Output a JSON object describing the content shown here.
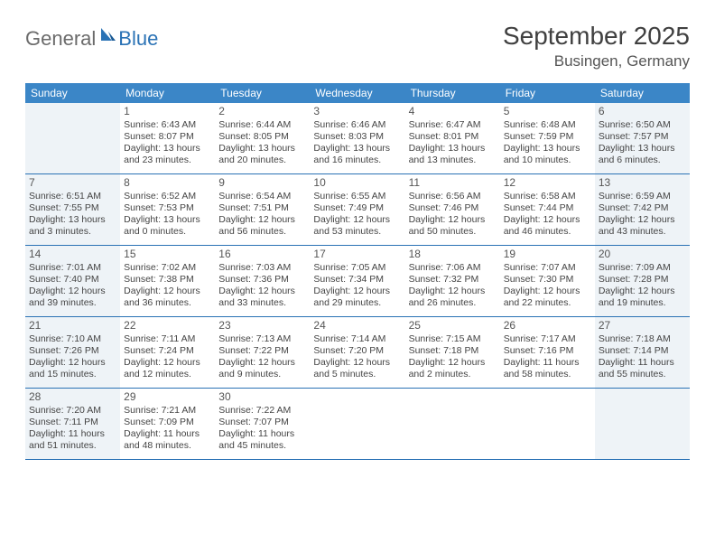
{
  "logo": {
    "general": "General",
    "blue": "Blue"
  },
  "title": "September 2025",
  "location": "Busingen, Germany",
  "colors": {
    "header_bg": "#3b86c7",
    "header_text": "#ffffff",
    "divider": "#2a72b5",
    "shaded_bg": "#eef3f7",
    "text": "#444444",
    "logo_gray": "#6b6b6b",
    "logo_blue": "#2a72b5"
  },
  "day_names": [
    "Sunday",
    "Monday",
    "Tuesday",
    "Wednesday",
    "Thursday",
    "Friday",
    "Saturday"
  ],
  "weeks": [
    [
      {
        "num": "",
        "sunrise": "",
        "sunset": "",
        "daylight": "",
        "shaded": true
      },
      {
        "num": "1",
        "sunrise": "Sunrise: 6:43 AM",
        "sunset": "Sunset: 8:07 PM",
        "daylight": "Daylight: 13 hours and 23 minutes."
      },
      {
        "num": "2",
        "sunrise": "Sunrise: 6:44 AM",
        "sunset": "Sunset: 8:05 PM",
        "daylight": "Daylight: 13 hours and 20 minutes."
      },
      {
        "num": "3",
        "sunrise": "Sunrise: 6:46 AM",
        "sunset": "Sunset: 8:03 PM",
        "daylight": "Daylight: 13 hours and 16 minutes."
      },
      {
        "num": "4",
        "sunrise": "Sunrise: 6:47 AM",
        "sunset": "Sunset: 8:01 PM",
        "daylight": "Daylight: 13 hours and 13 minutes."
      },
      {
        "num": "5",
        "sunrise": "Sunrise: 6:48 AM",
        "sunset": "Sunset: 7:59 PM",
        "daylight": "Daylight: 13 hours and 10 minutes."
      },
      {
        "num": "6",
        "sunrise": "Sunrise: 6:50 AM",
        "sunset": "Sunset: 7:57 PM",
        "daylight": "Daylight: 13 hours and 6 minutes.",
        "shaded": true
      }
    ],
    [
      {
        "num": "7",
        "sunrise": "Sunrise: 6:51 AM",
        "sunset": "Sunset: 7:55 PM",
        "daylight": "Daylight: 13 hours and 3 minutes.",
        "shaded": true
      },
      {
        "num": "8",
        "sunrise": "Sunrise: 6:52 AM",
        "sunset": "Sunset: 7:53 PM",
        "daylight": "Daylight: 13 hours and 0 minutes."
      },
      {
        "num": "9",
        "sunrise": "Sunrise: 6:54 AM",
        "sunset": "Sunset: 7:51 PM",
        "daylight": "Daylight: 12 hours and 56 minutes."
      },
      {
        "num": "10",
        "sunrise": "Sunrise: 6:55 AM",
        "sunset": "Sunset: 7:49 PM",
        "daylight": "Daylight: 12 hours and 53 minutes."
      },
      {
        "num": "11",
        "sunrise": "Sunrise: 6:56 AM",
        "sunset": "Sunset: 7:46 PM",
        "daylight": "Daylight: 12 hours and 50 minutes."
      },
      {
        "num": "12",
        "sunrise": "Sunrise: 6:58 AM",
        "sunset": "Sunset: 7:44 PM",
        "daylight": "Daylight: 12 hours and 46 minutes."
      },
      {
        "num": "13",
        "sunrise": "Sunrise: 6:59 AM",
        "sunset": "Sunset: 7:42 PM",
        "daylight": "Daylight: 12 hours and 43 minutes.",
        "shaded": true
      }
    ],
    [
      {
        "num": "14",
        "sunrise": "Sunrise: 7:01 AM",
        "sunset": "Sunset: 7:40 PM",
        "daylight": "Daylight: 12 hours and 39 minutes.",
        "shaded": true
      },
      {
        "num": "15",
        "sunrise": "Sunrise: 7:02 AM",
        "sunset": "Sunset: 7:38 PM",
        "daylight": "Daylight: 12 hours and 36 minutes."
      },
      {
        "num": "16",
        "sunrise": "Sunrise: 7:03 AM",
        "sunset": "Sunset: 7:36 PM",
        "daylight": "Daylight: 12 hours and 33 minutes."
      },
      {
        "num": "17",
        "sunrise": "Sunrise: 7:05 AM",
        "sunset": "Sunset: 7:34 PM",
        "daylight": "Daylight: 12 hours and 29 minutes."
      },
      {
        "num": "18",
        "sunrise": "Sunrise: 7:06 AM",
        "sunset": "Sunset: 7:32 PM",
        "daylight": "Daylight: 12 hours and 26 minutes."
      },
      {
        "num": "19",
        "sunrise": "Sunrise: 7:07 AM",
        "sunset": "Sunset: 7:30 PM",
        "daylight": "Daylight: 12 hours and 22 minutes."
      },
      {
        "num": "20",
        "sunrise": "Sunrise: 7:09 AM",
        "sunset": "Sunset: 7:28 PM",
        "daylight": "Daylight: 12 hours and 19 minutes.",
        "shaded": true
      }
    ],
    [
      {
        "num": "21",
        "sunrise": "Sunrise: 7:10 AM",
        "sunset": "Sunset: 7:26 PM",
        "daylight": "Daylight: 12 hours and 15 minutes.",
        "shaded": true
      },
      {
        "num": "22",
        "sunrise": "Sunrise: 7:11 AM",
        "sunset": "Sunset: 7:24 PM",
        "daylight": "Daylight: 12 hours and 12 minutes."
      },
      {
        "num": "23",
        "sunrise": "Sunrise: 7:13 AM",
        "sunset": "Sunset: 7:22 PM",
        "daylight": "Daylight: 12 hours and 9 minutes."
      },
      {
        "num": "24",
        "sunrise": "Sunrise: 7:14 AM",
        "sunset": "Sunset: 7:20 PM",
        "daylight": "Daylight: 12 hours and 5 minutes."
      },
      {
        "num": "25",
        "sunrise": "Sunrise: 7:15 AM",
        "sunset": "Sunset: 7:18 PM",
        "daylight": "Daylight: 12 hours and 2 minutes."
      },
      {
        "num": "26",
        "sunrise": "Sunrise: 7:17 AM",
        "sunset": "Sunset: 7:16 PM",
        "daylight": "Daylight: 11 hours and 58 minutes."
      },
      {
        "num": "27",
        "sunrise": "Sunrise: 7:18 AM",
        "sunset": "Sunset: 7:14 PM",
        "daylight": "Daylight: 11 hours and 55 minutes.",
        "shaded": true
      }
    ],
    [
      {
        "num": "28",
        "sunrise": "Sunrise: 7:20 AM",
        "sunset": "Sunset: 7:11 PM",
        "daylight": "Daylight: 11 hours and 51 minutes.",
        "shaded": true
      },
      {
        "num": "29",
        "sunrise": "Sunrise: 7:21 AM",
        "sunset": "Sunset: 7:09 PM",
        "daylight": "Daylight: 11 hours and 48 minutes."
      },
      {
        "num": "30",
        "sunrise": "Sunrise: 7:22 AM",
        "sunset": "Sunset: 7:07 PM",
        "daylight": "Daylight: 11 hours and 45 minutes."
      },
      {
        "num": "",
        "sunrise": "",
        "sunset": "",
        "daylight": ""
      },
      {
        "num": "",
        "sunrise": "",
        "sunset": "",
        "daylight": ""
      },
      {
        "num": "",
        "sunrise": "",
        "sunset": "",
        "daylight": ""
      },
      {
        "num": "",
        "sunrise": "",
        "sunset": "",
        "daylight": "",
        "shaded": true
      }
    ]
  ]
}
